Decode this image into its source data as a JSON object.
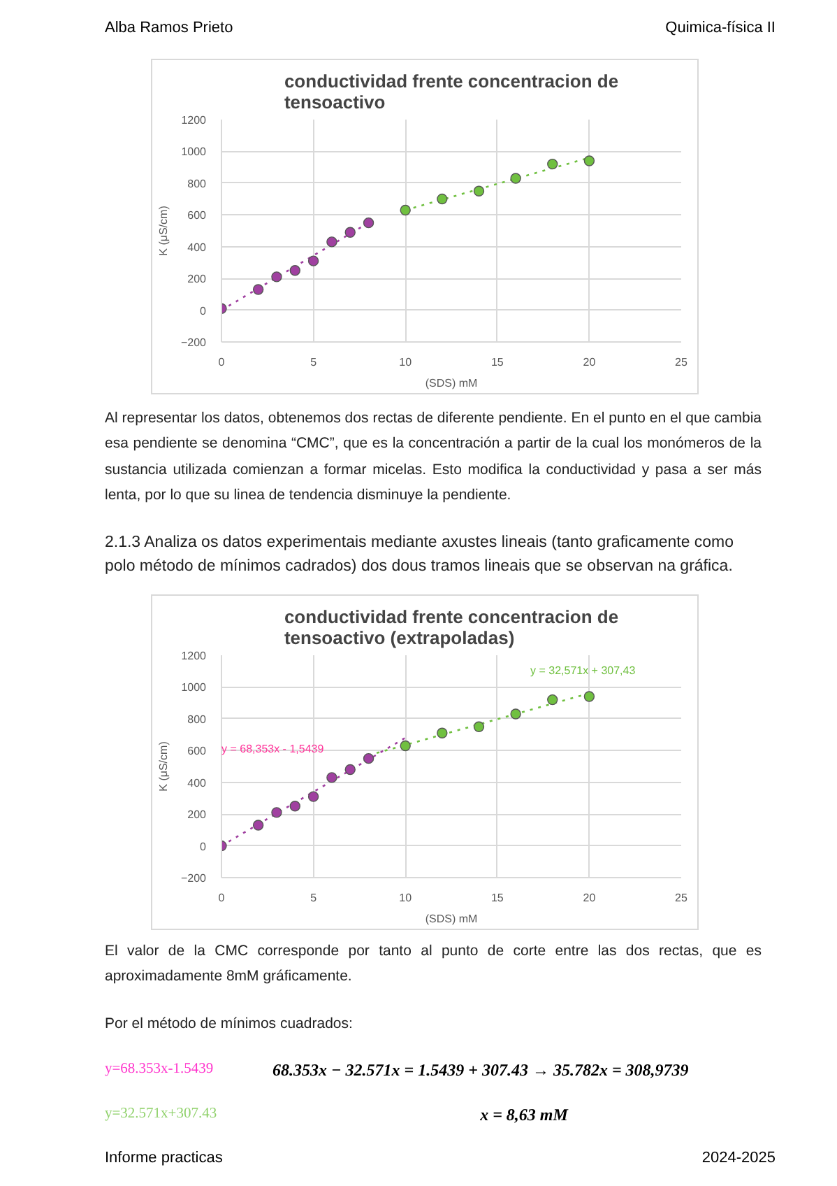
{
  "chart_data": [
    {
      "type": "scatter",
      "title": "conductividad frente concentracion de tensoactivo",
      "xlabel": "(SDS) mM",
      "ylabel": "K (μS/cm)",
      "xlim": [
        0,
        25
      ],
      "xticks": [
        0,
        5,
        10,
        15,
        20,
        25
      ],
      "ylim": [
        -200,
        1200
      ],
      "yticks": [
        -200,
        0,
        200,
        400,
        600,
        800,
        1000,
        1200
      ],
      "grid": true,
      "marker": "circle",
      "series": [
        {
          "color": "#a040a0",
          "x": [
            0,
            2,
            3,
            4,
            5,
            6,
            7,
            8
          ],
          "values": [
            10,
            130,
            210,
            250,
            310,
            430,
            490,
            550
          ]
        },
        {
          "color": "#70c040",
          "x": [
            10,
            12,
            14,
            16,
            18,
            20
          ],
          "values": [
            630,
            700,
            750,
            830,
            920,
            940
          ]
        },
        {
          "type": "line",
          "marker": "none",
          "line_style": "dotted",
          "color": "#a040a0",
          "x": [
            0,
            8
          ],
          "values": [
            0,
            550
          ]
        },
        {
          "type": "line",
          "marker": "none",
          "line_style": "dotted",
          "color": "#70c040",
          "x": [
            10,
            20
          ],
          "values": [
            630,
            960
          ]
        }
      ],
      "annotations": [
        "Alba Ramos Prieto",
        "Quimica-física II",
        "Al representar los datos, obtenemos dos rectas de diferente pendiente. En el punto en el que cambia esa pendiente se denomina “CMC”, que es la concentración a partir de la cual los monómeros de la sustancia utilizada comienzan a formar micelas. Esto modifica la conductividad y pasa a ser más lenta, por lo que su linea de tendencia disminuye la pendiente.",
        "2.1.3 Analiza os datos experimentais mediante axustes lineais (tanto graficamente como polo método de mínimos cadrados) dos dous tramos lineais que se observan na gráfica."
      ]
    },
    {
      "type": "scatter",
      "title": "conductividad frente concentracion de tensoactivo (extrapoladas)",
      "xlabel": "(SDS) mM",
      "ylabel": "K (μS/cm)",
      "xlim": [
        0,
        25
      ],
      "xticks": [
        0,
        5,
        10,
        15,
        20,
        25
      ],
      "ylim": [
        -200,
        1200
      ],
      "yticks": [
        -200,
        0,
        200,
        400,
        600,
        800,
        1000,
        1200
      ],
      "grid": true,
      "marker": "circle",
      "series": [
        {
          "color": "#a040a0",
          "x": [
            0,
            2,
            3,
            4,
            5,
            6,
            7,
            8
          ],
          "values": [
            0,
            130,
            210,
            250,
            310,
            430,
            480,
            550
          ]
        },
        {
          "color": "#70c040",
          "x": [
            10,
            12,
            14,
            16,
            18,
            20
          ],
          "values": [
            630,
            710,
            750,
            830,
            920,
            940
          ]
        },
        {
          "type": "line",
          "marker": "none",
          "line_style": "dotted",
          "color": "#a040a0",
          "x": [
            0,
            10
          ],
          "values": [
            0,
            680
          ]
        },
        {
          "type": "line",
          "marker": "none",
          "line_style": "dotted",
          "color": "#70c040",
          "x": [
            8,
            20
          ],
          "values": [
            570,
            960
          ]
        }
      ],
      "annotations": [
        "y = 68,353x - 1,5439",
        "y = 32,571x + 307,43",
        "El valor de la CMC corresponde por tanto al punto de corte entre las dos rectas, que es aproximadamente 8mM gráficamente.",
        "Por el método de mínimos cuadrados:",
        "y=68.353x-1.5439",
        "68.353x − 32.571x = 1.5439 + 307.43 → 35.782x = 308,9739",
        "y=32.571x+307.43",
        "x = 8,63 mM",
        "Informe practicas",
        "2024-2025"
      ]
    }
  ]
}
